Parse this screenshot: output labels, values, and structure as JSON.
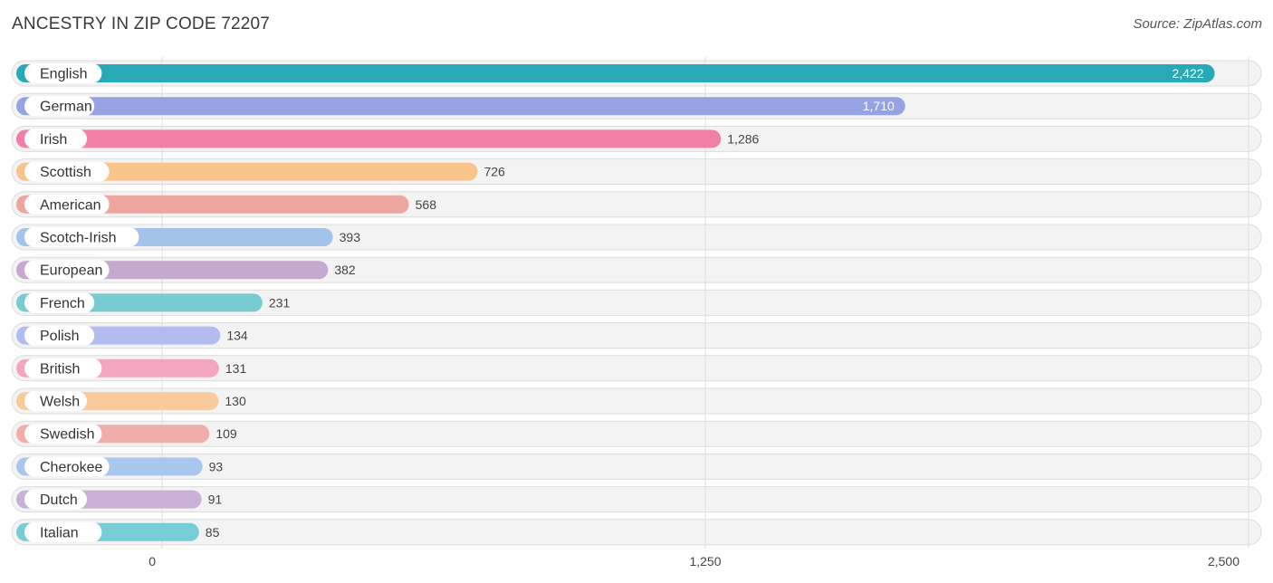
{
  "chart_data": {
    "type": "bar",
    "orientation": "horizontal",
    "title": "ANCESTRY IN ZIP CODE 72207",
    "source": "Source: ZipAtlas.com",
    "categories": [
      "English",
      "German",
      "Irish",
      "Scottish",
      "American",
      "Scotch-Irish",
      "European",
      "French",
      "Polish",
      "British",
      "Welsh",
      "Swedish",
      "Cherokee",
      "Dutch",
      "Italian"
    ],
    "values": [
      2422,
      1710,
      1286,
      726,
      568,
      393,
      382,
      231,
      134,
      131,
      130,
      109,
      93,
      91,
      85
    ],
    "value_labels": [
      "2,422",
      "1,710",
      "1,286",
      "726",
      "568",
      "393",
      "382",
      "231",
      "134",
      "131",
      "130",
      "109",
      "93",
      "91",
      "85"
    ],
    "colors": [
      "#27a9b8",
      "#96a3e3",
      "#f27fa5",
      "#f9c38c",
      "#eda69f",
      "#a4c3ea",
      "#c6a9cf",
      "#78cbd0",
      "#b3bcee",
      "#f6a5c1",
      "#f9cb9c",
      "#f0aeab",
      "#a9c6ee",
      "#c9b0d6",
      "#76cdd5"
    ],
    "xlim": [
      0,
      2500
    ],
    "xticks": [
      0,
      1250,
      2500
    ],
    "xtick_labels": [
      "0",
      "1,250",
      "2,500"
    ],
    "grid": true
  }
}
